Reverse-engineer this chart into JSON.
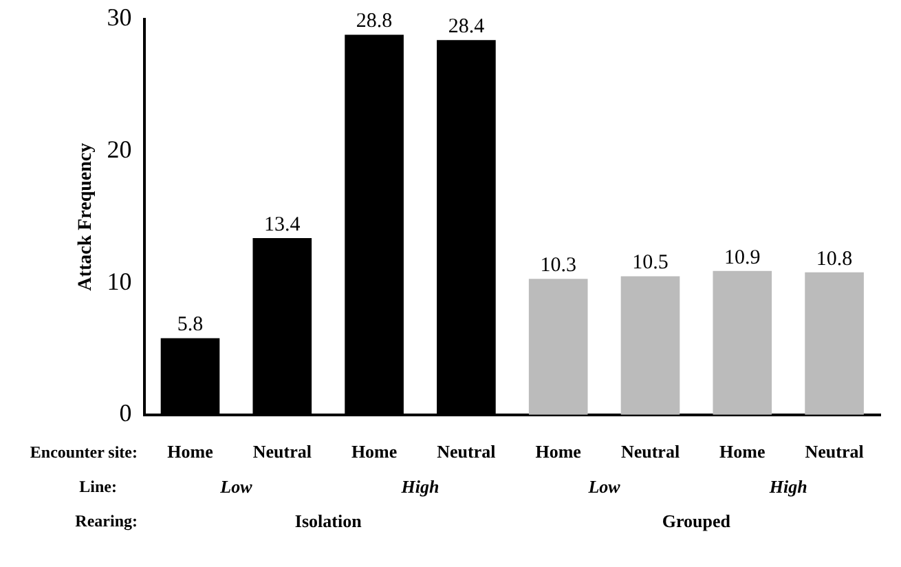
{
  "chart_data": {
    "type": "bar",
    "ylabel": "Attack Frequency",
    "categories": [
      "Home",
      "Neutral",
      "Home",
      "Neutral",
      "Home",
      "Neutral",
      "Home",
      "Neutral"
    ],
    "values": [
      5.8,
      13.4,
      28.8,
      28.4,
      10.3,
      10.5,
      10.9,
      10.8
    ],
    "colors": [
      "#000000",
      "#000000",
      "#000000",
      "#000000",
      "#bbbbbb",
      "#bbbbbb",
      "#bbbbbb",
      "#bbbbbb"
    ],
    "ylim": [
      0,
      30
    ],
    "yticks": [
      0,
      10,
      20,
      30
    ],
    "grid": false,
    "legend": false,
    "data_labels": true,
    "annotations": [
      "Encounter site:",
      "Line:",
      "Rearing:",
      "Low",
      "High",
      "Low",
      "High",
      "Isolation",
      "Grouped"
    ]
  }
}
